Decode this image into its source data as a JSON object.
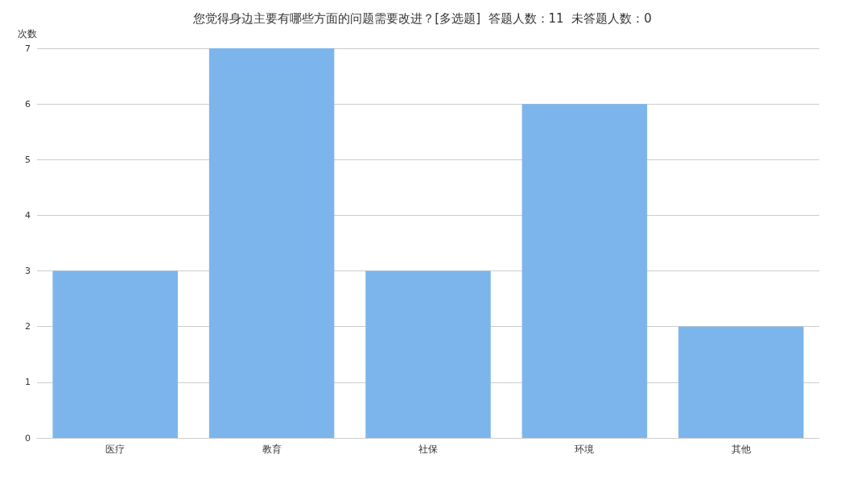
{
  "chart_data": {
    "type": "bar",
    "title": "您觉得身边主要有哪些方面的问题需要改进？[多选题]  答题人数：11  未答题人数：0",
    "ylabel": "次数",
    "categories": [
      "医疗",
      "教育",
      "社保",
      "环境",
      "其他"
    ],
    "values": [
      3,
      7,
      3,
      6,
      2
    ],
    "color": "#7cb5ec",
    "ylim": [
      0,
      7
    ],
    "yticks": [
      0,
      1,
      2,
      3,
      4,
      5,
      6,
      7
    ],
    "grid": "y"
  }
}
